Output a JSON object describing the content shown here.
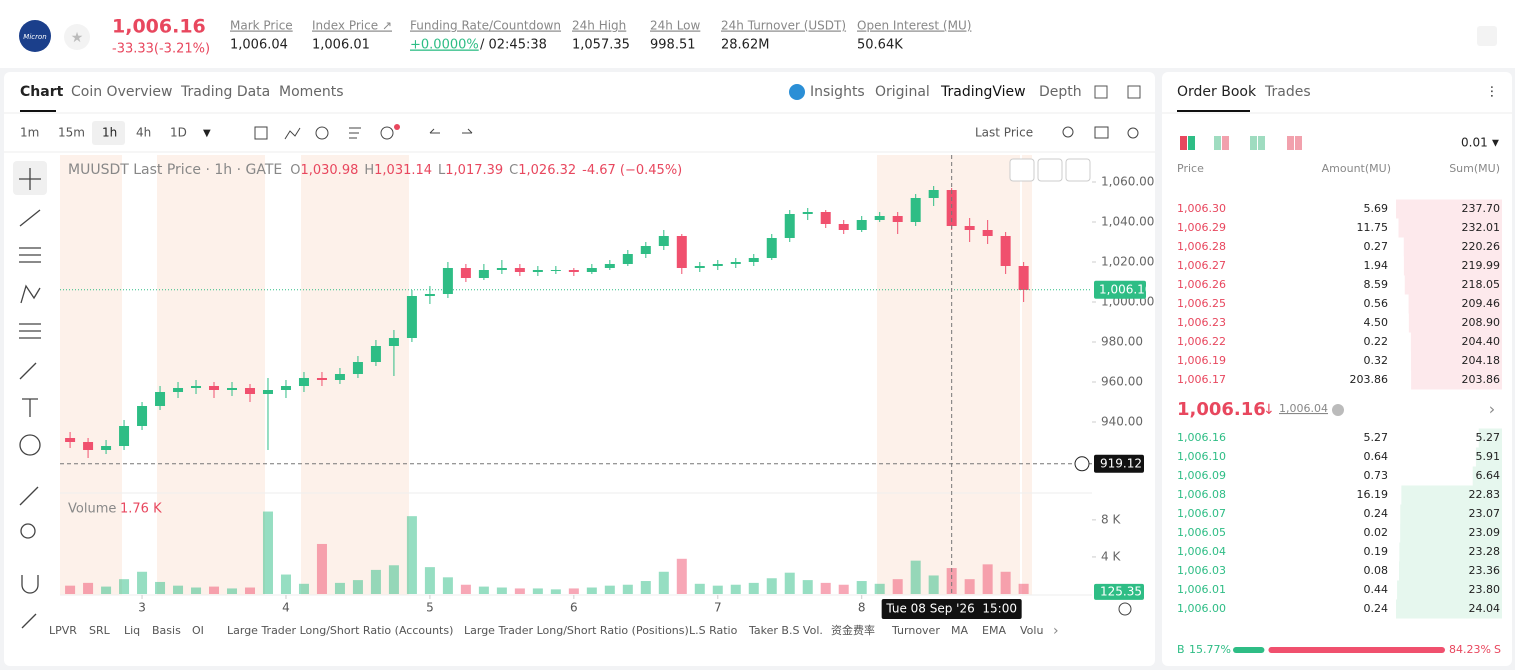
{
  "header": {
    "logo": "Micron",
    "price": "1,006.16",
    "change": "-33.33(-3.21%)",
    "stats": [
      {
        "label": "Mark Price",
        "value": "1,006.04"
      },
      {
        "label": "Index Price ↗",
        "value": "1,006.01"
      },
      {
        "label": "Funding Rate/Countdown",
        "value": "+0.0000%",
        "extra": "/ 02:45:38"
      },
      {
        "label": "24h High",
        "value": "1,057.35"
      },
      {
        "label": "24h Low",
        "value": "998.51"
      },
      {
        "label": "24h Turnover (USDT)",
        "value": "28.62M"
      },
      {
        "label": "Open Interest (MU)",
        "value": "50.64K"
      }
    ]
  },
  "tabs": [
    "Chart",
    "Coin Overview",
    "Trading Data",
    "Moments"
  ],
  "view_tabs": [
    "Insights",
    "Original",
    "TradingView",
    "Depth"
  ],
  "intervals": [
    "1m",
    "15m",
    "1h",
    "4h",
    "1D"
  ],
  "price_type": "Last Price",
  "indicators": [
    "LPVR",
    "SRL",
    "Liq",
    "Basis",
    "OI",
    "Large Trader Long/Short Ratio (Accounts)",
    "Large Trader Long/Short Ratio (Positions)",
    "L.S Ratio",
    "Taker B.S Vol.",
    "资金费率",
    "Turnover",
    "MA",
    "EMA",
    "Volu"
  ],
  "chart_data": {
    "type": "candlestick",
    "title": "MUUSDT Last Price · 1h · GATE",
    "legend": [
      {
        "key": "O",
        "value": "1,030.98"
      },
      {
        "key": "H",
        "value": "1,031.14"
      },
      {
        "key": "L",
        "value": "1,017.39"
      },
      {
        "key": "C",
        "value": "1,026.32"
      }
    ],
    "legend_change": "-4.67 (−0.45%)",
    "up_color": "#2ebd85",
    "down_color": "#f0506e",
    "x": [
      2.5,
      2.625,
      2.75,
      2.875,
      3,
      3.125,
      3.25,
      3.375,
      3.5,
      3.625,
      3.75,
      3.875,
      4,
      4.125,
      4.25,
      4.375,
      4.5,
      4.625,
      4.75,
      4.875,
      5,
      5.125,
      5.25,
      5.375,
      5.5,
      5.625,
      5.75,
      5.875,
      6,
      6.125,
      6.25,
      6.375,
      6.5,
      6.625,
      6.75,
      6.875,
      7,
      7.125,
      7.25,
      7.375,
      7.5,
      7.625,
      7.75,
      7.875,
      8,
      8.125,
      8.25,
      8.375,
      8.5,
      8.625,
      8.75,
      8.875,
      9,
      9.125
    ],
    "candles": [
      [
        932,
        935,
        927,
        930
      ],
      [
        930,
        932,
        922,
        926
      ],
      [
        926,
        931,
        924,
        928
      ],
      [
        928,
        941,
        926,
        938
      ],
      [
        938,
        950,
        936,
        948
      ],
      [
        948,
        958,
        946,
        955
      ],
      [
        955,
        960,
        952,
        957
      ],
      [
        957,
        961,
        954,
        958
      ],
      [
        958,
        960,
        952,
        956
      ],
      [
        956,
        960,
        953,
        957
      ],
      [
        957,
        959,
        950,
        954
      ],
      [
        954,
        962,
        926,
        956
      ],
      [
        956,
        961,
        952,
        958
      ],
      [
        958,
        965,
        955,
        962
      ],
      [
        962,
        965,
        958,
        961
      ],
      [
        961,
        967,
        959,
        964
      ],
      [
        964,
        973,
        962,
        970
      ],
      [
        970,
        981,
        968,
        978
      ],
      [
        978,
        986,
        963,
        982
      ],
      [
        982,
        1006,
        980,
        1003
      ],
      [
        1003,
        1008,
        999,
        1004
      ],
      [
        1004,
        1020,
        1002,
        1017
      ],
      [
        1017,
        1019,
        1010,
        1012
      ],
      [
        1012,
        1019,
        1011,
        1016
      ],
      [
        1016,
        1021,
        1014,
        1017
      ],
      [
        1017,
        1019,
        1013,
        1015
      ],
      [
        1015,
        1018,
        1013,
        1016
      ],
      [
        1016,
        1018,
        1014,
        1016
      ],
      [
        1016,
        1017,
        1013,
        1015
      ],
      [
        1015,
        1019,
        1014,
        1017
      ],
      [
        1017,
        1021,
        1016,
        1019
      ],
      [
        1019,
        1026,
        1018,
        1024
      ],
      [
        1024,
        1030,
        1022,
        1028
      ],
      [
        1028,
        1036,
        1026,
        1033
      ],
      [
        1033,
        1034,
        1014,
        1017
      ],
      [
        1017,
        1020,
        1015,
        1018
      ],
      [
        1018,
        1021,
        1016,
        1019
      ],
      [
        1019,
        1022,
        1017,
        1020
      ],
      [
        1020,
        1024,
        1018,
        1022
      ],
      [
        1022,
        1034,
        1021,
        1032
      ],
      [
        1032,
        1046,
        1030,
        1044
      ],
      [
        1044,
        1047,
        1041,
        1045
      ],
      [
        1045,
        1046,
        1037,
        1039
      ],
      [
        1039,
        1041,
        1034,
        1036
      ],
      [
        1036,
        1043,
        1035,
        1041
      ],
      [
        1041,
        1045,
        1040,
        1043
      ],
      [
        1043,
        1045,
        1034,
        1040
      ],
      [
        1040,
        1054,
        1038,
        1052
      ],
      [
        1052,
        1058,
        1048,
        1056
      ],
      [
        1056,
        1057,
        1036,
        1038
      ],
      [
        1038,
        1042,
        1030,
        1036
      ],
      [
        1036,
        1041,
        1029,
        1033
      ],
      [
        1033,
        1035,
        1014,
        1018
      ],
      [
        1018,
        1020,
        1000,
        1006
      ]
    ],
    "xlim": [
      2.43,
      9.6
    ],
    "xticks": [
      3,
      4,
      5,
      6,
      7,
      8
    ],
    "ylim": [
      904.5,
      1073.5
    ],
    "yticks": [
      {
        "value": 940,
        "label": "940.00"
      },
      {
        "value": 960,
        "label": "960.00"
      },
      {
        "value": 980,
        "label": "980.00"
      },
      {
        "value": 1000,
        "label": "1,000.00"
      },
      {
        "value": 1020,
        "label": "1,020.00"
      },
      {
        "value": 1040,
        "label": "1,040.00"
      },
      {
        "value": 1060,
        "label": "1,060.00"
      }
    ],
    "last_price": {
      "value": 1006.1,
      "label": "1,006.10"
    },
    "crosshair": {
      "x": 8.625,
      "price": {
        "value": 919.12,
        "label": "919.12"
      },
      "time_label": "Tue 08 Sep '26  15:00"
    },
    "volume": {
      "label": "Volume",
      "value_label": "1.76 K",
      "ylim": [
        0,
        10.9
      ],
      "yticks": [
        {
          "value": 4,
          "label": "4 K"
        },
        {
          "value": 8,
          "label": "8 K"
        }
      ],
      "last": {
        "value": 0.12535,
        "label": "125.35"
      },
      "values": [
        0.9,
        1.2,
        0.8,
        1.6,
        2.4,
        1.3,
        0.9,
        0.7,
        0.8,
        0.6,
        0.7,
        8.9,
        2.1,
        1.1,
        5.4,
        1.2,
        1.5,
        2.6,
        3.1,
        8.4,
        2.9,
        1.8,
        1.0,
        0.8,
        0.7,
        0.6,
        0.6,
        0.5,
        0.6,
        0.7,
        0.9,
        1.0,
        1.4,
        2.4,
        3.8,
        1.1,
        0.9,
        1.0,
        1.2,
        1.7,
        2.3,
        1.5,
        1.2,
        1.0,
        1.4,
        1.1,
        1.6,
        3.6,
        2.0,
        2.8,
        1.6,
        3.2,
        2.4,
        1.1
      ]
    }
  },
  "order_book": {
    "tabs": [
      "Order Book",
      "Trades"
    ],
    "precision": "0.01",
    "columns": [
      "Price",
      "Amount(MU)",
      "Sum(MU)"
    ],
    "asks": [
      {
        "price": "1,006.30",
        "amount": "5.69",
        "sum": {
          "value": 237.7,
          "label": "237.70"
        }
      },
      {
        "price": "1,006.29",
        "amount": "11.75",
        "sum": 232.01
      },
      {
        "price": "1,006.28",
        "amount": "0.27",
        "sum": 220.26
      },
      {
        "price": "1,006.27",
        "amount": "1.94",
        "sum": 219.99
      },
      {
        "price": "1,006.26",
        "amount": "8.59",
        "sum": 218.05
      },
      {
        "price": "1,006.25",
        "amount": "0.56",
        "sum": 209.46
      },
      {
        "price": "1,006.23",
        "amount": "4.50",
        "sum": {
          "value": 208.9,
          "label": "208.90"
        }
      },
      {
        "price": "1,006.22",
        "amount": "0.22",
        "sum": {
          "value": 204.4,
          "label": "204.40"
        }
      },
      {
        "price": "1,006.19",
        "amount": "0.32",
        "sum": 204.18
      },
      {
        "price": "1,006.17",
        "amount": "203.86",
        "sum": 203.86
      }
    ],
    "mid_price": "1,006.16",
    "mark_price": "1,006.04",
    "bids": [
      {
        "price": "1,006.16",
        "amount": "5.27",
        "sum": 5.27
      },
      {
        "price": "1,006.10",
        "amount": "0.64",
        "sum": 5.91
      },
      {
        "price": "1,006.09",
        "amount": "0.73",
        "sum": 6.64
      },
      {
        "price": "1,006.08",
        "amount": "16.19",
        "sum": 22.83
      },
      {
        "price": "1,006.07",
        "amount": "0.24",
        "sum": 23.07
      },
      {
        "price": "1,006.05",
        "amount": "0.02",
        "sum": 23.09
      },
      {
        "price": "1,006.04",
        "amount": "0.19",
        "sum": 23.28
      },
      {
        "price": "1,006.03",
        "amount": "0.08",
        "sum": 23.36
      },
      {
        "price": "1,006.01",
        "amount": "0.44",
        "sum": {
          "value": 23.8,
          "label": "23.80"
        }
      },
      {
        "price": "1,006.00",
        "amount": "0.24",
        "sum": 24.04
      }
    ],
    "ratio": {
      "buy_key": "B",
      "buy": {
        "value": 15.77,
        "label": "15.77%"
      },
      "sell": {
        "value": 84.23,
        "label": "84.23%"
      },
      "sell_key": "S"
    }
  }
}
